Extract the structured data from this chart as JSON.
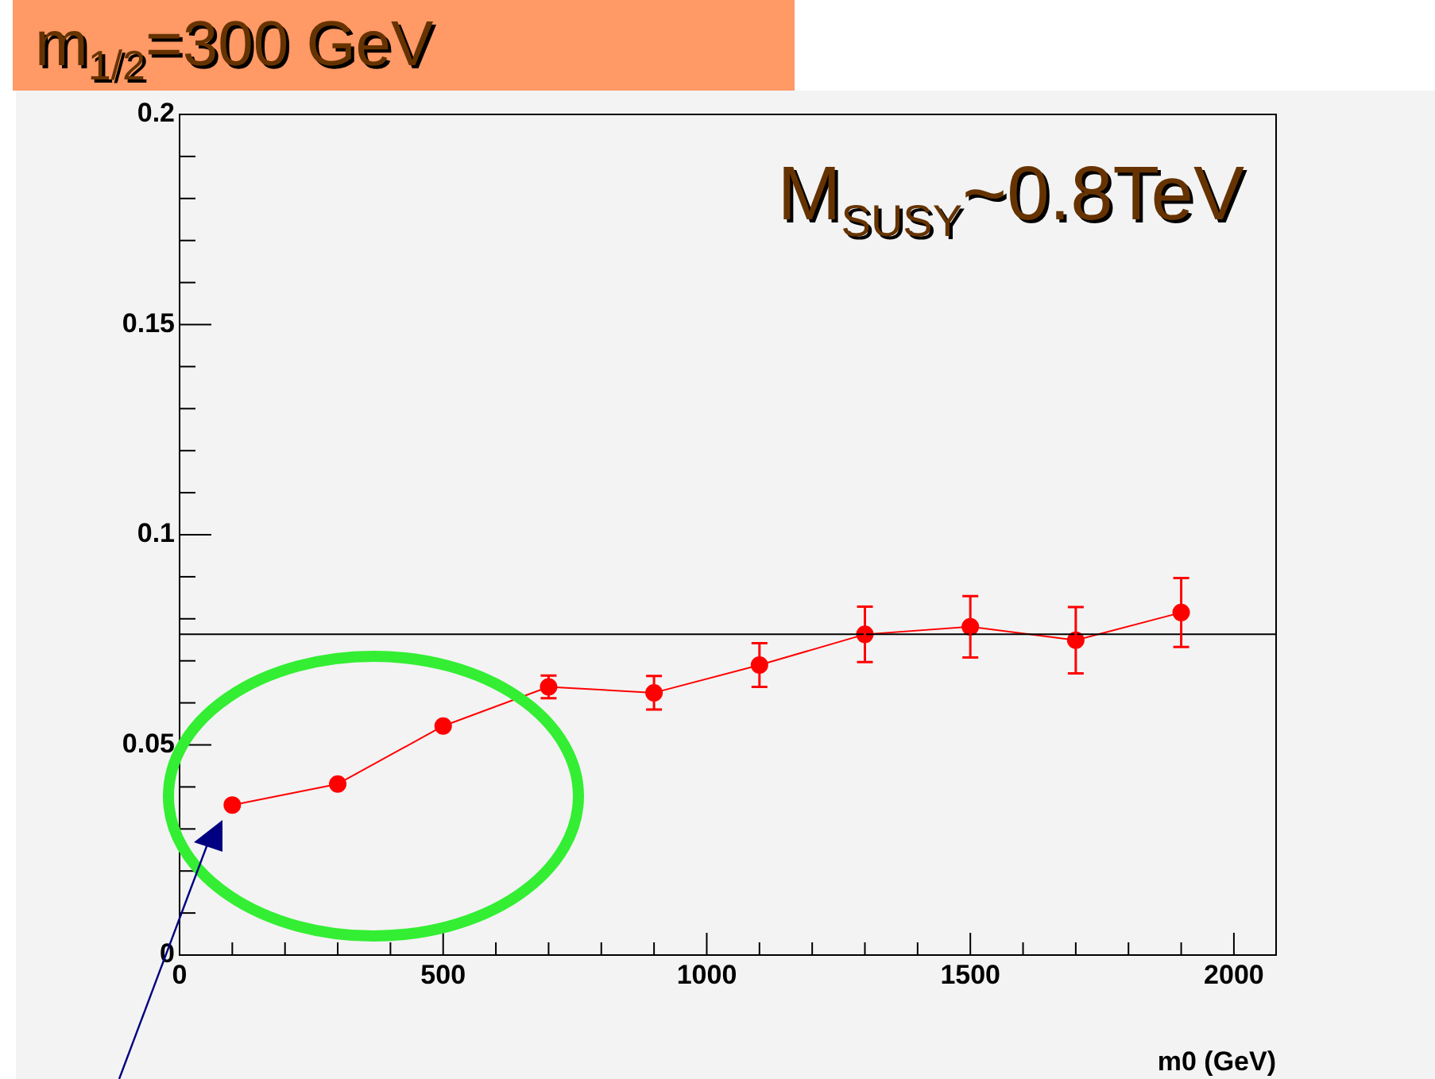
{
  "chart_data": {
    "type": "line",
    "title": "m$_{1/2}$=300 GeV",
    "xlabel": "m0 (GeV)",
    "annotations": [
      "M$_{SUSY}$~0.8TeV"
    ],
    "x": [
      100,
      300,
      500,
      700,
      900,
      1100,
      1300,
      1500,
      1700,
      1900
    ],
    "series": [
      {
        "color": "#ff0000",
        "values": [
          0.0357,
          0.0407,
          0.0545,
          0.0638,
          0.0624,
          0.069,
          0.0763,
          0.0781,
          0.0749,
          0.0815
        ],
        "errors": [
          null,
          null,
          null,
          0.0027,
          0.004,
          0.0052,
          0.0066,
          0.0073,
          0.0079,
          0.0082
        ]
      }
    ],
    "marker": "circle",
    "line_style": "solid",
    "grid": false,
    "legend": false,
    "ref_lines": [
      {
        "axis": "y",
        "value": 0.0763,
        "color": "#000000"
      }
    ],
    "xlim": [
      0,
      2080
    ],
    "xticks": [
      0,
      {
        "value": 100,
        "label": null
      },
      {
        "value": 200,
        "label": null
      },
      {
        "value": 300,
        "label": null
      },
      {
        "value": 400,
        "label": null
      },
      500,
      {
        "value": 600,
        "label": null
      },
      {
        "value": 700,
        "label": null
      },
      {
        "value": 800,
        "label": null
      },
      {
        "value": 900,
        "label": null
      },
      1000,
      {
        "value": 1100,
        "label": null
      },
      {
        "value": 1200,
        "label": null
      },
      {
        "value": 1300,
        "label": null
      },
      {
        "value": 1400,
        "label": null
      },
      1500,
      {
        "value": 1600,
        "label": null
      },
      {
        "value": 1700,
        "label": null
      },
      {
        "value": 1800,
        "label": null
      },
      {
        "value": 1900,
        "label": null
      },
      2000
    ],
    "ylim": [
      0,
      0.2
    ],
    "yticks": [
      0,
      {
        "value": 0.01,
        "label": null
      },
      {
        "value": 0.02,
        "label": null
      },
      {
        "value": 0.03,
        "label": null
      },
      {
        "value": 0.04,
        "label": null
      },
      0.05,
      {
        "value": 0.06,
        "label": null
      },
      {
        "value": 0.07,
        "label": null
      },
      {
        "value": 0.08,
        "label": null
      },
      {
        "value": 0.09,
        "label": null
      },
      0.1,
      {
        "value": 0.11,
        "label": null
      },
      {
        "value": 0.12,
        "label": null
      },
      {
        "value": 0.13,
        "label": null
      },
      {
        "value": 0.14,
        "label": null
      },
      0.15,
      {
        "value": 0.16,
        "label": null
      },
      {
        "value": 0.17,
        "label": null
      },
      {
        "value": 0.18,
        "label": null
      },
      {
        "value": 0.19,
        "label": null
      },
      0.2
    ]
  }
}
